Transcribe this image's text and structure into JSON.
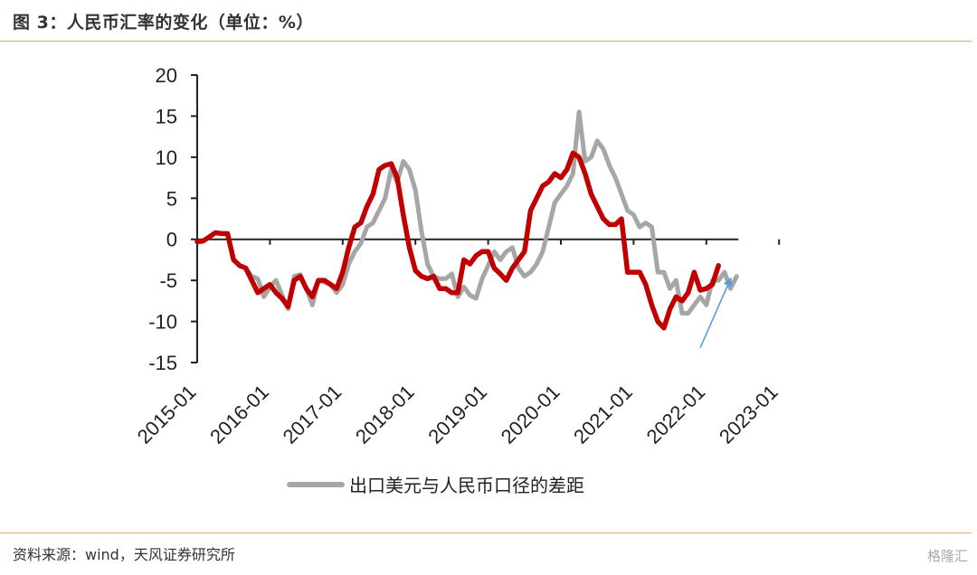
{
  "title": "图 3：人民币汇率的变化（单位：%）",
  "source": "资料来源：wind，天风证券研究所",
  "watermark": "格隆汇",
  "chart_data": {
    "type": "line",
    "ylim": [
      -15,
      20
    ],
    "yticks": [
      20,
      15,
      10,
      5,
      0,
      -5,
      -10,
      -15
    ],
    "xticks": [
      "2015-01",
      "2016-01",
      "2017-01",
      "2018-01",
      "2019-01",
      "2020-01",
      "2021-01",
      "2022-01",
      "2023-01"
    ],
    "legend": "出口美元与人民币口径的差距",
    "legend_position": "bottom",
    "grid": false,
    "series": [
      {
        "name": "出口美元与人民币口径的差距",
        "color": "#a6a6a6",
        "values": [
          -0.3,
          -0.2,
          0.3,
          0.8,
          0.7,
          0.7,
          -2.5,
          -3.2,
          -3.5,
          -4.5,
          -4.8,
          -7.0,
          -5.8,
          -5.0,
          -6.8,
          -8.5,
          -4.5,
          -4.3,
          -6.0,
          -8.0,
          -5.0,
          -5.2,
          -5.5,
          -6.5,
          -5.5,
          -3.0,
          -1.5,
          -0.5,
          1.5,
          2.0,
          3.5,
          5.0,
          8.5,
          7.0,
          9.5,
          8.5,
          6.0,
          1.0,
          -3.0,
          -4.5,
          -4.8,
          -4.8,
          -4.2,
          -7.0,
          -5.8,
          -6.8,
          -7.2,
          -4.8,
          -3.2,
          -1.5,
          -2.5,
          -1.5,
          -1.0,
          -3.5,
          -4.5,
          -4.0,
          -3.0,
          -1.5,
          1.5,
          4.5,
          5.5,
          6.5,
          8.0,
          15.5,
          9.5,
          10.0,
          12.0,
          11.0,
          9.0,
          7.5,
          5.5,
          3.5,
          3.0,
          1.5,
          2.0,
          1.5,
          -4.0,
          -4.0,
          -6.0,
          -5.0,
          -9.0,
          -9.0,
          -8.0,
          -7.0,
          -8.0,
          -5.0,
          -5.0,
          -4.0,
          -6.0,
          -4.5
        ]
      },
      {
        "name": "",
        "color": "#c00000",
        "values": [
          -0.3,
          -0.2,
          0.3,
          0.8,
          0.7,
          0.7,
          -2.5,
          -3.2,
          -3.5,
          -5.0,
          -6.5,
          -6.0,
          -5.5,
          -6.5,
          -7.2,
          -8.2,
          -5.0,
          -4.5,
          -6.0,
          -7.0,
          -5.0,
          -5.0,
          -5.5,
          -6.0,
          -4.0,
          -1.0,
          1.5,
          2.0,
          4.0,
          5.5,
          8.5,
          9.0,
          9.2,
          7.5,
          3.0,
          -1.0,
          -3.8,
          -4.5,
          -4.8,
          -4.5,
          -6.0,
          -6.0,
          -6.5,
          -6.5,
          -2.5,
          -3.0,
          -2.0,
          -1.5,
          -1.5,
          -3.5,
          -4.2,
          -5.0,
          -3.5,
          -2.5,
          -1.5,
          3.5,
          5.0,
          6.5,
          7.0,
          8.0,
          7.5,
          8.5,
          10.5,
          10.0,
          8.0,
          5.5,
          4.0,
          2.5,
          1.8,
          1.8,
          2.5,
          -4.0,
          -4.0,
          -4.0,
          -5.5,
          -8.0,
          -10.0,
          -10.8,
          -8.5,
          -7.0,
          -7.5,
          -6.5,
          -4.0,
          -6.2,
          -6.0,
          -5.5,
          -3.2
        ]
      }
    ],
    "annotation": {
      "type": "arrow",
      "color": "#5b9bd5",
      "from": [
        83,
        -13.2
      ],
      "to": [
        88,
        -4.8
      ]
    }
  }
}
